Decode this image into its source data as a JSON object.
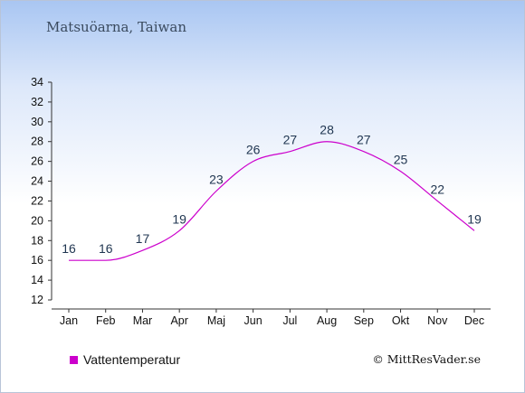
{
  "header": {
    "title": "Matsuöarna, Taiwan"
  },
  "legend": {
    "label": "Vattentemperatur",
    "color": "#cc00cc"
  },
  "credit": {
    "text": "© MittResVader.se"
  },
  "colors": {
    "line": "#cc00cc",
    "label": "#1f3550",
    "axis": "#333333"
  },
  "chart_data": {
    "type": "line",
    "categories": [
      "Jan",
      "Feb",
      "Mar",
      "Apr",
      "Maj",
      "Jun",
      "Jul",
      "Aug",
      "Sep",
      "Okt",
      "Nov",
      "Dec"
    ],
    "series": [
      {
        "name": "Vattentemperatur",
        "values": [
          16,
          16,
          17,
          19,
          23,
          26,
          27,
          28,
          27,
          25,
          22,
          19
        ]
      }
    ],
    "data_labels": [
      "16",
      "16",
      "17",
      "19",
      "23",
      "26",
      "27",
      "28",
      "27",
      "25",
      "22",
      "19"
    ],
    "yticks": [
      12,
      14,
      16,
      18,
      20,
      22,
      24,
      26,
      28,
      30,
      32,
      34
    ],
    "ylim": [
      12,
      34
    ],
    "grid": false,
    "legend_position": "bottom-left"
  }
}
